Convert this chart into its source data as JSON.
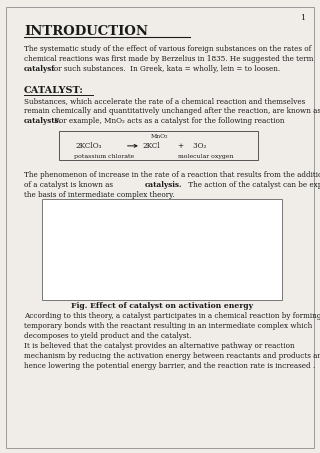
{
  "page_number": "1",
  "title": "INTRODUCTION",
  "bg_color": "#f0ede8",
  "text_color": "#1a1a1a",
  "fs_title": 9.5,
  "fs_body": 5.2,
  "fs_heading": 7.0,
  "fs_small": 4.5,
  "lm": 0.075,
  "rm": 0.965,
  "lh": 0.022,
  "intro_lines": [
    "The systematic study of the effect of various foreign substances on the rates of",
    "chemical reactions was first made by Berzelius in 1835. He suggested the term"
  ],
  "catalyst_lines": [
    "Substances, which accelerate the rate of a chemical reaction and themselves",
    "remain chemically and quantitatively unchanged after the reaction, are known as"
  ],
  "p2_line1": "The phenomenon of increase in the rate of a reaction that results from the addition",
  "p2_line2a": "of a catalyst is known as ",
  "p2_line2b": "catalysis.",
  "p2_line2c": " The action of the catalyst can be explained on",
  "p2_line3": "the basis of intermediate complex theory.",
  "p3_lines": [
    "According to this theory, a catalyst participates in a chemical reaction by forming",
    "temporary bonds with the reactant resulting in an intermediate complex which",
    "decomposes to yield product and the catalyst.",
    "It is believed that the catalyst provides an alternative pathway or reaction",
    "mechanism by reducing the activation energy between reactants and products and",
    "hence lowering the potential energy barrier, and the reaction rate is increased ."
  ],
  "fig_caption": "Fig. Effect of catalyst on activation energy"
}
